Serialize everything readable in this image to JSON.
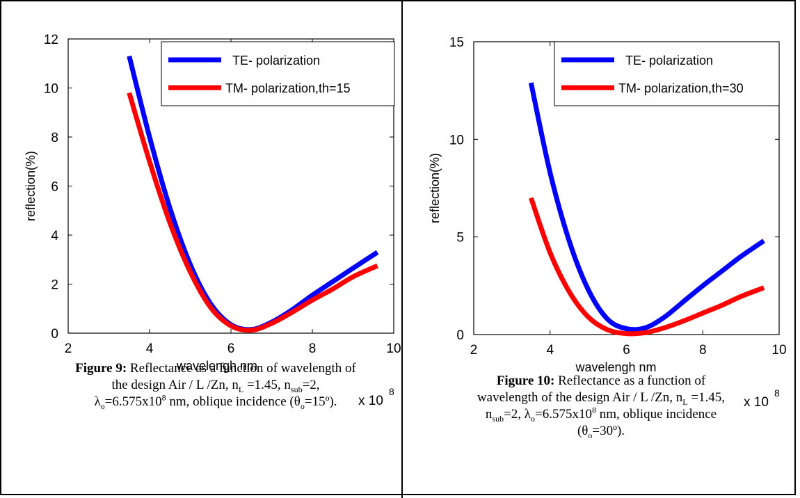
{
  "charts": [
    {
      "chart_data": {
        "type": "line",
        "xlabel": "wavelengh nm",
        "ylabel": "reflection(%)",
        "x_multiplier": "x 10",
        "x_multiplier_exp": "8",
        "xlim": [
          2,
          10
        ],
        "ylim": [
          0,
          12
        ],
        "xticks": [
          2,
          4,
          6,
          8,
          10
        ],
        "yticks": [
          0,
          2,
          4,
          6,
          8,
          10,
          12
        ],
        "legend_position": "top-right",
        "series": [
          {
            "name": "TE- polarization",
            "color": "#0000ff",
            "x": [
              3.5,
              4.0,
              4.5,
              5.0,
              5.5,
              6.0,
              6.5,
              7.0,
              7.5,
              8.0,
              8.5,
              9.0,
              9.6
            ],
            "y": [
              11.3,
              8.0,
              5.1,
              2.8,
              1.2,
              0.35,
              0.15,
              0.45,
              0.95,
              1.55,
              2.1,
              2.65,
              3.3
            ]
          },
          {
            "name": "TM- polarization,th=15",
            "color": "#ff0000",
            "x": [
              3.5,
              4.0,
              4.5,
              5.0,
              5.5,
              6.0,
              6.5,
              7.0,
              7.5,
              8.0,
              8.5,
              9.0,
              9.6
            ],
            "y": [
              9.8,
              7.0,
              4.5,
              2.5,
              1.05,
              0.3,
              0.12,
              0.4,
              0.85,
              1.35,
              1.8,
              2.3,
              2.75
            ]
          }
        ]
      },
      "caption": {
        "label": "Figure 9:",
        "line1": " Reflectance as a function of wavelength of",
        "line2": "the design Air / L /Zn, n",
        "line2_sub1": "L",
        "line2_mid": " =1.45, n",
        "line2_sub2": "sub",
        "line2_end": "=2,",
        "line3_pre": "λ",
        "line3_sub": "o",
        "line3_mid": "=6.575x10",
        "line3_sup": "8",
        "line3_end": "  nm, oblique incidence (θ",
        "line3_sub2": "o",
        "line3_tail": "=15º)."
      }
    },
    {
      "chart_data": {
        "type": "line",
        "xlabel": "wavelengh nm",
        "ylabel": "reflection(%)",
        "x_multiplier": "x 10",
        "x_multiplier_exp": "8",
        "xlim": [
          2,
          10
        ],
        "ylim": [
          0,
          15
        ],
        "xticks": [
          2,
          4,
          6,
          8,
          10
        ],
        "yticks": [
          0,
          5,
          10,
          15
        ],
        "legend_position": "top-right",
        "series": [
          {
            "name": "TE- polarization",
            "color": "#0000ff",
            "x": [
              3.5,
              4.0,
              4.5,
              5.0,
              5.5,
              6.0,
              6.5,
              7.0,
              7.5,
              8.0,
              8.5,
              9.0,
              9.6
            ],
            "y": [
              12.9,
              8.3,
              4.8,
              2.3,
              0.8,
              0.3,
              0.35,
              0.9,
              1.7,
              2.5,
              3.25,
              4.0,
              4.8
            ]
          },
          {
            "name": "TM- polarization,th=30",
            "color": "#ff0000",
            "x": [
              3.5,
              4.0,
              4.5,
              5.0,
              5.5,
              6.0,
              6.5,
              7.0,
              7.5,
              8.0,
              8.5,
              9.0,
              9.6
            ],
            "y": [
              7.0,
              4.2,
              2.2,
              0.9,
              0.25,
              0.05,
              0.1,
              0.35,
              0.7,
              1.1,
              1.5,
              1.95,
              2.4
            ]
          }
        ]
      },
      "caption": {
        "label": "Figure 10:",
        "line1": " Reflectance as a function of",
        "line2": "wavelength of the design Air / L /Zn, n",
        "line2_sub1": "L",
        "line2_end": " =1.45,",
        "line3_pre": "n",
        "line3_sub": "sub",
        "line3_mid": "=2, λ",
        "line3_sub2": "o",
        "line3_mid2": "=6.575x10",
        "line3_sup": "8",
        "line3_end": " nm, oblique incidence",
        "line4_pre": "(θ",
        "line4_sub": "o",
        "line4_end": "=30º)."
      }
    }
  ]
}
